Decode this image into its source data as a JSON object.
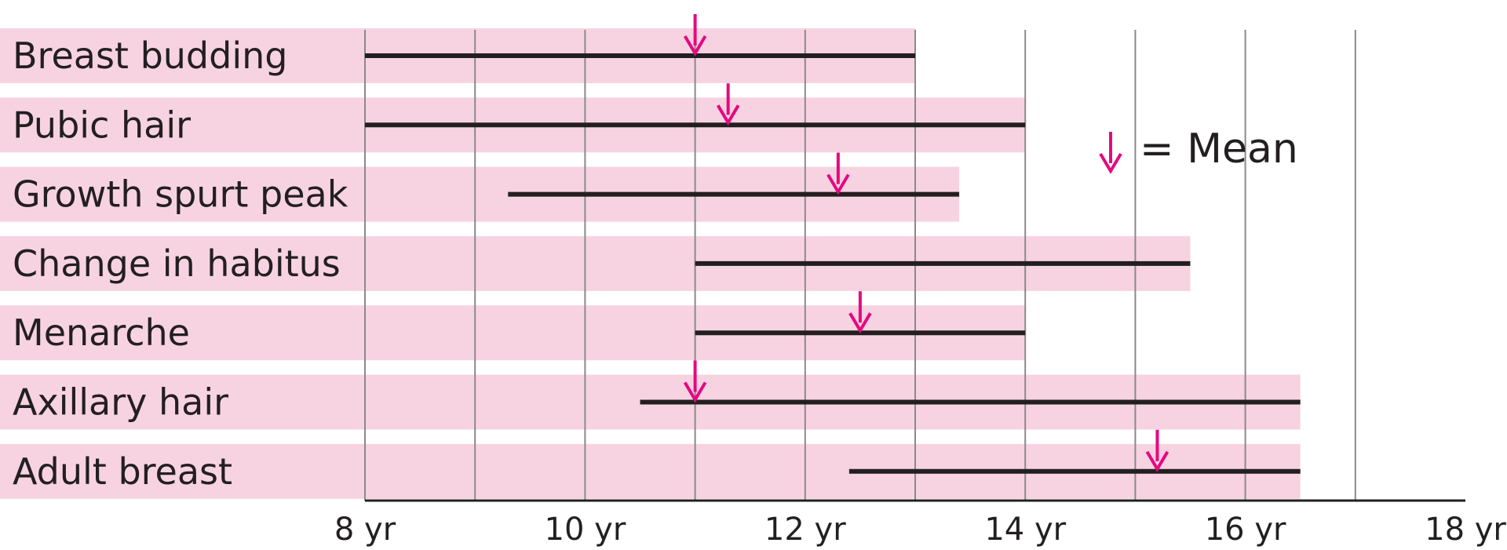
{
  "chart_data": {
    "type": "range-timeline",
    "xlim": [
      8,
      18
    ],
    "x_ticks": [
      {
        "value": 8,
        "label": "8 yr"
      },
      {
        "value": 10,
        "label": "10 yr"
      },
      {
        "value": 12,
        "label": "12 yr"
      },
      {
        "value": 14,
        "label": "14 yr"
      },
      {
        "value": 16,
        "label": "16 yr"
      },
      {
        "value": 18,
        "label": "18 yr"
      }
    ],
    "gridlines": [
      8,
      9,
      10,
      11,
      12,
      13,
      14,
      15,
      16,
      17
    ],
    "rows": [
      {
        "label": "Breast budding",
        "start": 8,
        "end": 13,
        "mean": 11.0
      },
      {
        "label": "Pubic hair",
        "start": 8,
        "end": 14,
        "mean": 11.3
      },
      {
        "label": "Growth spurt peak",
        "start": 9.3,
        "end": 13.4,
        "mean": 12.3
      },
      {
        "label": "Change in habitus",
        "start": 11,
        "end": 15.5,
        "mean": null
      },
      {
        "label": "Menarche",
        "start": 11,
        "end": 14,
        "mean": 12.5
      },
      {
        "label": "Axillary hair",
        "start": 10.5,
        "end": 16.5,
        "mean": 11.0
      },
      {
        "label": "Adult breast",
        "start": 12.4,
        "end": 16.5,
        "mean": 15.2
      }
    ],
    "legend": {
      "text": "= Mean",
      "position": "upper-right"
    },
    "colors": {
      "band": "#f7d3e2",
      "range_line": "#231f20",
      "mean_arrow": "#e5097f",
      "grid": "#8a8a8a",
      "axis": "#231f20"
    }
  }
}
